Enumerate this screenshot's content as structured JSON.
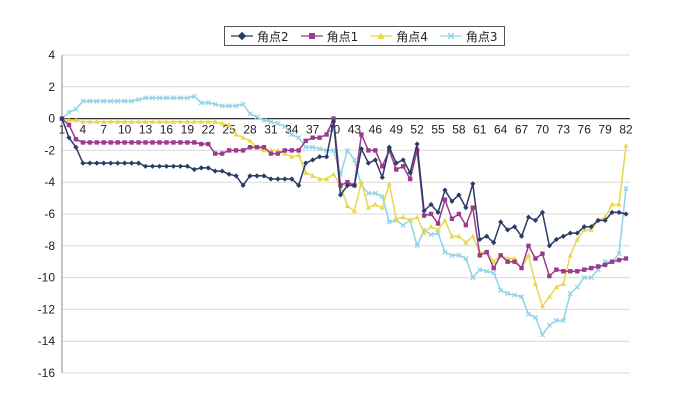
{
  "chart_data": {
    "type": "line",
    "title": "",
    "xlabel": "",
    "ylabel": "",
    "ylim": [
      -16,
      4
    ],
    "yticks": [
      4,
      2,
      0,
      -2,
      -4,
      -6,
      -8,
      -10,
      -12,
      -14,
      -16
    ],
    "xlim": [
      1,
      82
    ],
    "xtick_labels": [
      1,
      4,
      7,
      10,
      13,
      16,
      19,
      22,
      25,
      28,
      31,
      34,
      37,
      40,
      43,
      46,
      49,
      52,
      55,
      58,
      61,
      64,
      67,
      70,
      73,
      76,
      79,
      82
    ],
    "grid": "horizontal",
    "legend_position": "top-center",
    "series": [
      {
        "name": "角点2",
        "color": "#2b3a67",
        "marker": "diamond",
        "values": [
          0,
          -1.2,
          -1.8,
          -2.8,
          -2.8,
          -2.8,
          -2.8,
          -2.8,
          -2.8,
          -2.8,
          -2.8,
          -2.8,
          -3.0,
          -3.0,
          -3.0,
          -3.0,
          -3.0,
          -3.0,
          -3.0,
          -3.2,
          -3.1,
          -3.1,
          -3.3,
          -3.3,
          -3.5,
          -3.6,
          -4.2,
          -3.6,
          -3.6,
          -3.6,
          -3.8,
          -3.8,
          -3.8,
          -3.8,
          -4.2,
          -2.8,
          -2.6,
          -2.4,
          -2.4,
          -0.2,
          -4.8,
          -4.2,
          -4.2,
          -1.9,
          -2.8,
          -2.6,
          -3.7,
          -1.8,
          -2.8,
          -2.6,
          -3.4,
          -1.6,
          -5.8,
          -5.4,
          -5.9,
          -4.5,
          -5.2,
          -4.8,
          -5.6,
          -4.1,
          -7.6,
          -7.4,
          -7.8,
          -6.5,
          -7.0,
          -6.8,
          -7.4,
          -6.2,
          -6.4,
          -5.9,
          -8.0,
          -7.6,
          -7.4,
          -7.2,
          -7.2,
          -6.8,
          -6.8,
          -6.4,
          -6.4,
          -5.9,
          -5.9,
          -6.0
        ]
      },
      {
        "name": "角点1",
        "color": "#9b3a8e",
        "marker": "square",
        "values": [
          0,
          -0.4,
          -1.3,
          -1.5,
          -1.5,
          -1.5,
          -1.5,
          -1.5,
          -1.5,
          -1.5,
          -1.5,
          -1.5,
          -1.5,
          -1.5,
          -1.5,
          -1.5,
          -1.5,
          -1.5,
          -1.5,
          -1.5,
          -1.6,
          -1.6,
          -2.2,
          -2.2,
          -2.0,
          -2.0,
          -2.0,
          -1.8,
          -1.8,
          -1.8,
          -2.2,
          -2.2,
          -2.0,
          -2.0,
          -2.0,
          -1.4,
          -1.2,
          -1.2,
          -1.0,
          0,
          -4.2,
          -4.0,
          -4.2,
          -1.0,
          -2.0,
          -2.0,
          -3.0,
          -2.0,
          -3.2,
          -3.0,
          -3.8,
          -2.0,
          -6.1,
          -6.0,
          -6.6,
          -5.1,
          -6.3,
          -6.0,
          -6.7,
          -5.6,
          -8.6,
          -8.4,
          -9.4,
          -8.6,
          -9.0,
          -9.0,
          -9.4,
          -8.0,
          -8.8,
          -8.5,
          -9.9,
          -9.5,
          -9.6,
          -9.6,
          -9.6,
          -9.5,
          -9.4,
          -9.3,
          -9.2,
          -9.0,
          -8.9,
          -8.8
        ]
      },
      {
        "name": "角点4",
        "color": "#e8d84a",
        "marker": "triangle",
        "values": [
          0,
          -0.1,
          -0.1,
          -0.2,
          -0.2,
          -0.2,
          -0.2,
          -0.2,
          -0.2,
          -0.2,
          -0.2,
          -0.2,
          -0.2,
          -0.2,
          -0.2,
          -0.2,
          -0.2,
          -0.2,
          -0.2,
          -0.2,
          -0.2,
          -0.2,
          -0.2,
          -0.3,
          -0.4,
          -1.0,
          -1.2,
          -1.4,
          -1.8,
          -2.0,
          -2.0,
          -2.0,
          -2.2,
          -2.4,
          -2.3,
          -3.4,
          -3.6,
          -3.8,
          -3.8,
          -3.5,
          -4.2,
          -5.5,
          -5.8,
          -4.0,
          -5.6,
          -5.4,
          -5.6,
          -4.1,
          -6.3,
          -6.2,
          -6.4,
          -6.2,
          -7.2,
          -6.8,
          -7.0,
          -6.4,
          -7.4,
          -7.4,
          -7.8,
          -7.4,
          -8.4,
          -8.4,
          -9.0,
          -8.6,
          -8.8,
          -8.8,
          -9.4,
          -8.6,
          -10.4,
          -11.8,
          -11.2,
          -10.6,
          -10.4,
          -8.6,
          -7.6,
          -7.0,
          -7.0,
          -6.4,
          -6.2,
          -5.4,
          -5.4,
          -1.7
        ]
      },
      {
        "name": "角点3",
        "color": "#8fd3e6",
        "marker": "x",
        "values": [
          0,
          0.4,
          0.6,
          1.1,
          1.1,
          1.1,
          1.1,
          1.1,
          1.1,
          1.1,
          1.1,
          1.2,
          1.3,
          1.3,
          1.3,
          1.3,
          1.3,
          1.3,
          1.3,
          1.4,
          1.0,
          1.0,
          0.9,
          0.8,
          0.8,
          0.8,
          0.9,
          0.3,
          0.1,
          -0.1,
          -0.2,
          -0.3,
          -0.5,
          -1.0,
          -1.2,
          -1.8,
          -1.8,
          -1.9,
          -2.0,
          -2.0,
          -3.5,
          -2.0,
          -2.6,
          -4.2,
          -4.7,
          -4.7,
          -4.9,
          -6.5,
          -6.4,
          -6.7,
          -6.4,
          -8.0,
          -7.0,
          -7.3,
          -7.2,
          -8.4,
          -8.6,
          -8.6,
          -8.8,
          -10.0,
          -9.5,
          -9.6,
          -9.7,
          -10.8,
          -11.0,
          -11.1,
          -11.2,
          -12.3,
          -12.5,
          -13.6,
          -13.0,
          -12.7,
          -12.7,
          -11.0,
          -10.6,
          -10.0,
          -10.0,
          -9.5,
          -9.0,
          -9.0,
          -8.5,
          -4.4
        ]
      }
    ]
  }
}
